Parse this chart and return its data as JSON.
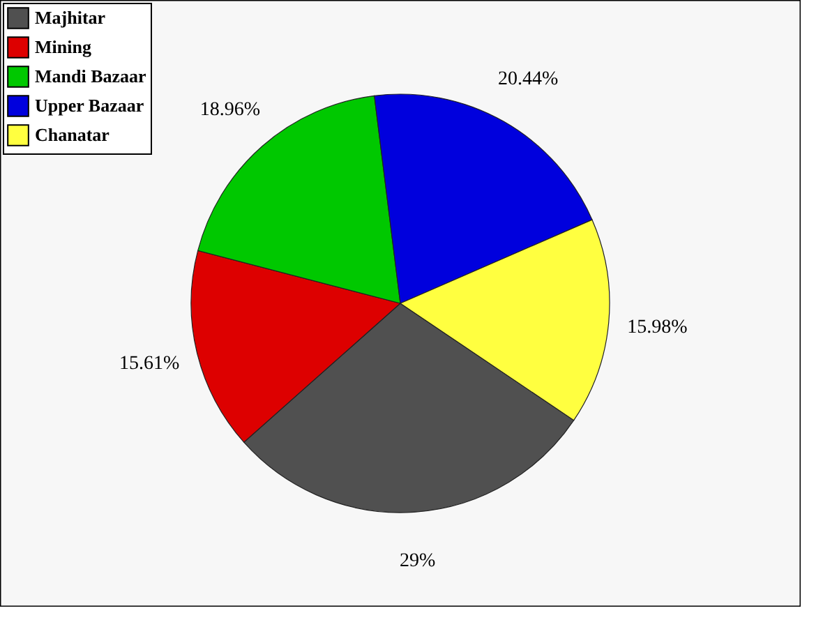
{
  "chart_data": {
    "type": "pie",
    "categories": [
      "Majhitar",
      "Mining",
      "Mandi Bazaar",
      "Upper Bazaar",
      "Chanatar"
    ],
    "values": [
      29,
      15.61,
      18.96,
      20.44,
      15.98
    ],
    "colors": [
      "#505050",
      "#dd0000",
      "#00c800",
      "#0000dd",
      "#ffff40"
    ],
    "value_labels": [
      "29%",
      "15.61%",
      "18.96%",
      "20.44%",
      "15.98%"
    ],
    "legend": "top left"
  }
}
